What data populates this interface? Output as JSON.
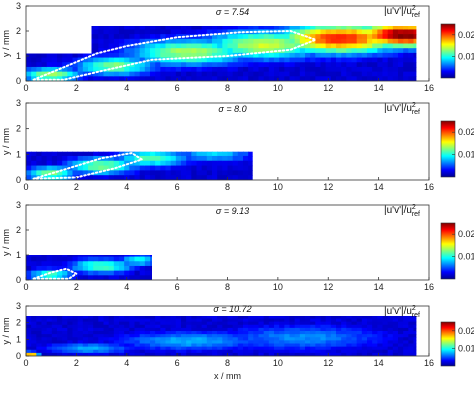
{
  "chart_data": [
    {
      "type": "heatmap",
      "sigma_label": "σ = 7.54",
      "xlim": [
        0,
        16
      ],
      "ylim": [
        0,
        3
      ],
      "x_ticks": [
        0,
        2,
        4,
        6,
        8,
        10,
        12,
        14,
        16
      ],
      "y_ticks": [
        0,
        1,
        2,
        3
      ],
      "ylabel": "y / mm",
      "xlabel": "",
      "measured_region": [
        [
          0,
          1.1
        ],
        [
          2.6,
          1.1
        ],
        [
          2.6,
          2.2
        ],
        [
          15.5,
          2.2
        ],
        [
          15.5,
          0
        ],
        [
          0,
          0
        ]
      ],
      "hotspots": [
        {
          "x": 1.0,
          "y": 0.25,
          "sx": 1.2,
          "sy": 0.3,
          "v": 0.013
        },
        {
          "x": 3.5,
          "y": 0.6,
          "sx": 1.6,
          "sy": 0.4,
          "v": 0.012
        },
        {
          "x": 6.5,
          "y": 1.15,
          "sx": 2.5,
          "sy": 0.55,
          "v": 0.013
        },
        {
          "x": 9.5,
          "y": 1.45,
          "sx": 2.5,
          "sy": 0.6,
          "v": 0.014
        },
        {
          "x": 12.5,
          "y": 1.7,
          "sx": 2.5,
          "sy": 0.6,
          "v": 0.021
        },
        {
          "x": 15.0,
          "y": 1.85,
          "sx": 2.0,
          "sy": 0.5,
          "v": 0.025
        }
      ],
      "outline": [
        [
          0.3,
          0.05
        ],
        [
          1.5,
          0.55
        ],
        [
          2.8,
          1.1
        ],
        [
          4.0,
          1.4
        ],
        [
          6.0,
          1.75
        ],
        [
          8.5,
          1.95
        ],
        [
          10.5,
          2.0
        ],
        [
          11.5,
          1.65
        ],
        [
          10.5,
          1.25
        ],
        [
          8.0,
          1.0
        ],
        [
          5.0,
          0.85
        ],
        [
          3.0,
          0.4
        ],
        [
          1.5,
          0.05
        ],
        [
          0.3,
          0.05
        ]
      ]
    },
    {
      "type": "heatmap",
      "sigma_label": "σ = 8.0",
      "xlim": [
        0,
        16
      ],
      "ylim": [
        0,
        3
      ],
      "x_ticks": [
        0,
        2,
        4,
        6,
        8,
        10,
        12,
        14,
        16
      ],
      "y_ticks": [
        0,
        1,
        2,
        3
      ],
      "ylabel": "y / mm",
      "xlabel": "",
      "measured_region": [
        [
          0,
          1.1
        ],
        [
          9.0,
          1.1
        ],
        [
          9.0,
          0
        ],
        [
          0,
          0
        ]
      ],
      "hotspots": [
        {
          "x": 1.0,
          "y": 0.25,
          "sx": 1.0,
          "sy": 0.3,
          "v": 0.012
        },
        {
          "x": 3.0,
          "y": 0.55,
          "sx": 1.4,
          "sy": 0.35,
          "v": 0.012
        },
        {
          "x": 5.0,
          "y": 0.85,
          "sx": 1.5,
          "sy": 0.35,
          "v": 0.011
        },
        {
          "x": 7.5,
          "y": 1.0,
          "sx": 1.5,
          "sy": 0.3,
          "v": 0.008
        }
      ],
      "outline": [
        [
          0.3,
          0.05
        ],
        [
          1.5,
          0.4
        ],
        [
          3.0,
          0.85
        ],
        [
          4.2,
          1.05
        ],
        [
          4.6,
          0.8
        ],
        [
          3.5,
          0.45
        ],
        [
          2.0,
          0.1
        ],
        [
          0.3,
          0.05
        ]
      ]
    },
    {
      "type": "heatmap",
      "sigma_label": "σ = 9.13",
      "xlim": [
        0,
        16
      ],
      "ylim": [
        0,
        3
      ],
      "x_ticks": [
        0,
        2,
        4,
        6,
        8,
        10,
        12,
        14,
        16
      ],
      "y_ticks": [
        0,
        1,
        2,
        3
      ],
      "ylabel": "y / mm",
      "xlabel": "",
      "measured_region": [
        [
          0,
          1.0
        ],
        [
          5.0,
          1.0
        ],
        [
          5.0,
          0
        ],
        [
          0,
          0
        ]
      ],
      "hotspots": [
        {
          "x": 1.0,
          "y": 0.2,
          "sx": 0.9,
          "sy": 0.25,
          "v": 0.011
        },
        {
          "x": 3.0,
          "y": 0.55,
          "sx": 1.3,
          "sy": 0.3,
          "v": 0.011
        },
        {
          "x": 4.5,
          "y": 0.8,
          "sx": 0.8,
          "sy": 0.25,
          "v": 0.009
        }
      ],
      "outline": [
        [
          0.3,
          0.05
        ],
        [
          1.0,
          0.3
        ],
        [
          1.6,
          0.45
        ],
        [
          2.0,
          0.25
        ],
        [
          1.7,
          0.05
        ],
        [
          0.3,
          0.05
        ]
      ]
    },
    {
      "type": "heatmap",
      "sigma_label": "σ = 10.72",
      "xlim": [
        0,
        16
      ],
      "ylim": [
        0,
        3
      ],
      "x_ticks": [
        0,
        2,
        4,
        6,
        8,
        10,
        12,
        14,
        16
      ],
      "y_ticks": [
        0,
        1,
        2,
        3
      ],
      "ylabel": "y / mm",
      "xlabel": "x / mm",
      "measured_region": [
        [
          0,
          2.4
        ],
        [
          15.5,
          2.4
        ],
        [
          15.5,
          0
        ],
        [
          0,
          0
        ]
      ],
      "hotspots": [
        {
          "x": 0.2,
          "y": 0.1,
          "sx": 0.3,
          "sy": 0.15,
          "v": 0.018
        },
        {
          "x": 2.5,
          "y": 0.45,
          "sx": 1.8,
          "sy": 0.35,
          "v": 0.007
        },
        {
          "x": 6.5,
          "y": 0.9,
          "sx": 3.0,
          "sy": 0.6,
          "v": 0.007
        },
        {
          "x": 11.0,
          "y": 1.1,
          "sx": 3.5,
          "sy": 0.8,
          "v": 0.006
        }
      ],
      "outline": []
    }
  ],
  "colorbar": {
    "label_text": "|u'v'|/u",
    "label_sup": "2",
    "label_sub": "ref",
    "ticks": [
      0.01,
      0.02
    ],
    "tick_labels": [
      "0.01",
      "0.02"
    ],
    "vmin": 0,
    "vmax": 0.025,
    "colormap": "jet"
  }
}
